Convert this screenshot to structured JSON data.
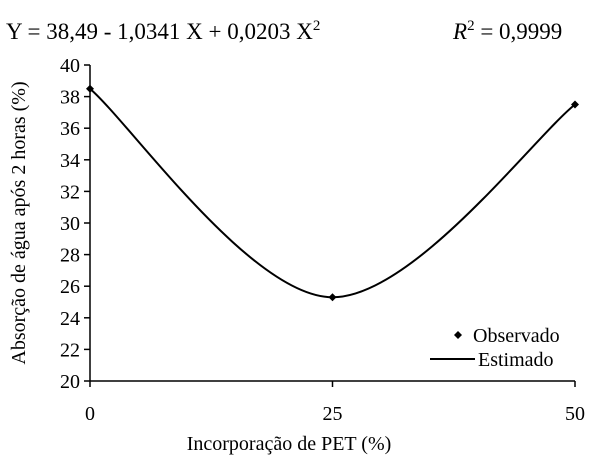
{
  "chart_data": {
    "type": "scatter",
    "equation": {
      "lhs": "Y",
      "rhs": "38,49 - 1,0341 X + 0,0203 X",
      "exponent": "2",
      "r2_label": "R",
      "r2_exponent": "2",
      "r2_value": "0,9999"
    },
    "xlabel": "Incorporação de PET (%)",
    "ylabel": "Absorção de água após 2 horas (%)",
    "xlim": [
      0,
      50
    ],
    "ylim": [
      20,
      40
    ],
    "xticks": [
      0,
      25,
      50
    ],
    "yticks": [
      20,
      22,
      24,
      26,
      28,
      30,
      32,
      34,
      36,
      38,
      40
    ],
    "grid": false,
    "legend_position": "bottom-right",
    "series": [
      {
        "name": "Observado",
        "kind": "points",
        "marker": "diamond",
        "x": [
          0,
          25,
          50
        ],
        "y": [
          38.5,
          25.3,
          37.5
        ]
      },
      {
        "name": "Estimado",
        "kind": "line",
        "x": [
          0,
          25,
          50
        ],
        "y": [
          38.5,
          25.3,
          37.5
        ]
      }
    ]
  }
}
